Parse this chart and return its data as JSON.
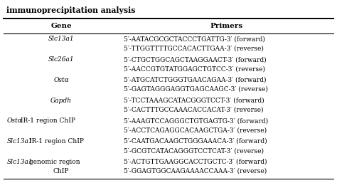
{
  "title": "immunoprecipitation analysis",
  "col1_header": "Gene",
  "col2_header": "Primers",
  "rows": [
    {
      "gene": "Slc13a1",
      "gene_italic": true,
      "gene_italic_part": "Slc13a1",
      "gene_normal_part": "",
      "primers": [
        "5′-AATACGCGCTACCCTGATTG-3′ (forward)",
        "5′-TTGGTTTTGCCACACTTGAA-3′ (reverse)"
      ]
    },
    {
      "gene": "Slc26a1",
      "gene_italic": true,
      "gene_italic_part": "Slc26a1",
      "gene_normal_part": "",
      "primers": [
        "5′-CTGCTGGCAGCTAAGGAACT-3′ (forward)",
        "5′-AACCGTGTATGGAGCTGTCC-3′ (reverse)"
      ]
    },
    {
      "gene": "Ostα",
      "gene_italic": true,
      "gene_italic_part": "Ostα",
      "gene_normal_part": "",
      "primers": [
        "5′-ATGCATCTGGGTGAACAGAA-3′ (forward)",
        "5′-GAGTAGGGAGGTGAGCAAGC-3′ (reverse)"
      ]
    },
    {
      "gene": "Gapdh",
      "gene_italic": true,
      "gene_italic_part": "Gapdh",
      "gene_normal_part": "",
      "primers": [
        "5′-TCCTAAAGCATACGGGTCCT-3′ (forward)",
        "5′-CACTTTGCCAAACACCACAT-3′ (reverse)"
      ]
    },
    {
      "gene": "Ostα IR-1 region ChIP",
      "gene_italic": false,
      "gene_italic_part": "Ostα",
      "gene_normal_part": " IR-1 region ChIP",
      "primers": [
        "5′-AAAGTCCAGGGCTGTGAGTG-3′ (forward)",
        "5′-ACCTCAGAGGCACAAGCTGA-3′ (reverse)"
      ]
    },
    {
      "gene": "Slc13a1 IR-1 region ChIP",
      "gene_italic": false,
      "gene_italic_part": "Slc13a1",
      "gene_normal_part": " IR-1 region ChIP",
      "primers": [
        "5′-CAATGACAAGCTGGGAAACA-3′ (forward)",
        "5′-GCGTCATACAGGGTCCTCAT-3′ (reverse)"
      ]
    },
    {
      "gene": "Slc13a1 genomic region ChIP",
      "gene_italic": false,
      "gene_italic_part": "Slc13a1",
      "gene_normal_part": " genomic region\nChIP",
      "primers": [
        "5′-ACTGTTGAAGGCACCTGCTC-3′ (forward)",
        "5′-GGAGTGGCAAGAAAACCAAA-3′ (reverse)"
      ]
    }
  ],
  "background_color": "#ffffff",
  "text_color": "#000000"
}
